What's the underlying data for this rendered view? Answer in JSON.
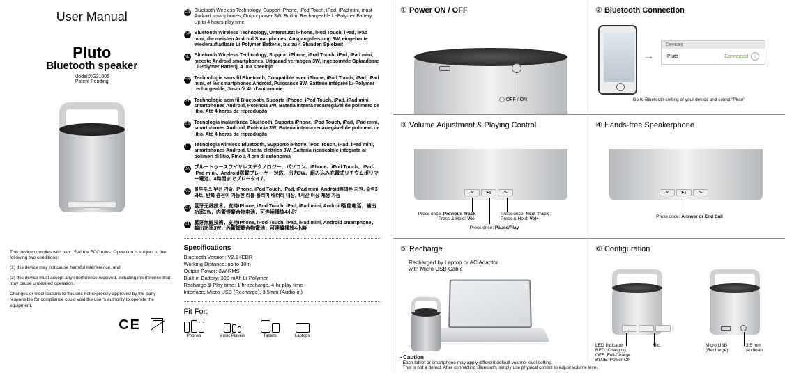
{
  "left": {
    "um": "User Manual",
    "title1": "Pluto",
    "title2": "Bluetooth speaker",
    "model": "Model:XG31005",
    "patent": "Patent Pending",
    "fcc1": "This device complies with part 15 of the FCC rules. Operation is subject to the following two conditions:",
    "fcc2": "(1) this device may not cause harmful interference, and",
    "fcc3": "(2) this device must accept any interference received, including interference that may cause undesired operation.",
    "fcc4": "Changes or modifications to this unit not expressly approved by the party responsible for compliance could void the user's authority to operate the equipment.",
    "ce": "CE"
  },
  "langs": [
    {
      "code": "EN",
      "bold": false,
      "txt": "Bluetooth Wireless Technology, Support iPhone, iPod Touch, iPad, iPad mini, most Android smartphones, Output power 3W, Built-in Rechargeable Li-Polymer Battery, Up to 4 hours play time"
    },
    {
      "code": "DE",
      "bold": true,
      "txt": "Bluetooth Wireless Technology, Unterstützt iPhone, iPod Touch, iPad, iPad mini, die meisten Android Smartphones, Ausgangsleistung 3W, eingebaute wiederaufladbare Li-Polymer Batterie, bis zu 4 Stunden Spielzeit"
    },
    {
      "code": "NL",
      "bold": true,
      "txt": "Bluetooth Wireless Technology, Support iPhone, iPod Touch, iPad, iPad mini, meeste Android smartphones, Uitgaand vermogen 3W, Ingebouwde Oplaadbare Li-Polymer Batterij, 4 uur speeltijd"
    },
    {
      "code": "FR",
      "bold": true,
      "txt": "Technologie sans fil Bluetooth, Compatible avec iPhone, iPod Touch, iPad, iPad mini, et les smartphones Android, Puissance 3W, Batterie intégrée Li-Polymer rechargeable, Jusqu'à 4h d'autonomie"
    },
    {
      "code": "PT",
      "bold": true,
      "txt": "Technologie sem fil Bluetooth, Suporta iPhone, iPod Touch, iPad, iPad mini, smartphones Android, Potência 3W, Bateria interna recarregável de polímero de lítio, Até 4 horas de reprodução"
    },
    {
      "code": "ES",
      "bold": true,
      "txt": "Tecnología inalámbrica Bluetooth, Suporta iPhone, iPod Touch, iPad, iPad mini, smartphones Android, Potência 3W, Bateria interna recarregável de polímero de lítio, Até 4 horas de reprodução"
    },
    {
      "code": "IT",
      "bold": true,
      "txt": "Tecnologia wireless Bluetooth, Supporto iPhone, iPod Touch, iPad, iPad mini, smartphones Android, Uscita elettrica 3W, Batteria ricaricabile integrata ai polimeri di litio, Fino a 4 ore di autonomia"
    },
    {
      "code": "JA",
      "bold": true,
      "txt": "ブルートゥースワイヤレステクノロジー、パソコン、iPhone、iPod Touch、iPad、iPad mini、Android搭載プレーヤー対応、出力3W、組み込み充電式リチウムポリマー電池、4時間までプレータイム"
    },
    {
      "code": "KO",
      "bold": true,
      "txt": "블루투스 무선 기술, iPhone, iPod Touch, iPad, iPad mini, Android휴대폰 지원, 출력3와트, 반복 충전이 가능한 리튬 폴리머 배터리 내장, 4시간 이상 재생 가능"
    },
    {
      "code": "ZH",
      "bold": true,
      "txt": "蓝牙无线技术，支持iPhone, iPod Touch, iPad, iPad mini, Android智能电话，输出功率3W，内置锂聚合物电池，可连续播放4小时"
    },
    {
      "code": "ZT",
      "bold": true,
      "txt": "藍牙無線技術，支持iPhone, iPod Touch, iPad, iPad mini, Android smartphone，輸出功率3W，內置鋰聚合物電池，可連續播放4小時"
    }
  ],
  "spec": {
    "h": "Specifications",
    "l1": "Bluetooth Version: V2.1+EDR",
    "l2": "Working Distance: up to 10m",
    "l3": "Output Power: 3W RMS",
    "l4": "Built-in Battery: 300 mAh Li-Polymer",
    "l5": "Recharge & Play time: 1 hr recharge, 4-hr play time",
    "l6": "Interface: Micro USB (Recharge), 3.5mm (Audio-in)"
  },
  "fitfor": {
    "h": "Fit For:",
    "c1": "Phones",
    "c2": "Music Players",
    "c3": "Tablets",
    "c4": "Laptops"
  },
  "cells": {
    "c1": {
      "n": "①",
      "t": "Power  ON / OFF",
      "sw": "OFF / ON"
    },
    "c2": {
      "n": "②",
      "t": "Bluetooth  Connection",
      "devh": "Devices",
      "devn": "Pluto",
      "devs": "Connected",
      "note": "Go to Bluetooth setting of your device and select \"Pluto\""
    },
    "c3": {
      "n": "③",
      "t": "Volume Adjustment & Playing Control",
      "b1": "≪",
      "b2": "▶||",
      "b3": "≫",
      "l1a": "Press once: ",
      "l1b": "Previous Track",
      "l1c": "Press & Hold: ",
      "l1d": "Vol-",
      "l2a": "Press once: ",
      "l2b": "Pause/Play",
      "l3a": "Press once: ",
      "l3b": "Next Track",
      "l3c": "Press & Hold: ",
      "l3d": "Vol+"
    },
    "c4": {
      "n": "④",
      "t": "Hands-free Speakerphone",
      "b1": "≪",
      "b2": "▶||",
      "b3": "≫",
      "l1a": "Press once: ",
      "l1b": "Answer or End Call"
    },
    "c5": {
      "n": "⑤",
      "t": "Recharge",
      "note": "Recharged by Laptop or AC Adaptor\nwith Micro USB Cable"
    },
    "c6": {
      "n": "⑥",
      "t": "Configuration",
      "led": "LED Indicator",
      "led2": "RED: Charging",
      "led3": "OFF: Full-Charge",
      "led4": "BLUE: Power ON",
      "mic": "Mic.",
      "usb": "Micro USB\n(Recharge)",
      "aux": "3.5 mm\nAudio-in"
    },
    "caution": {
      "h": "Caution",
      "l1": "Each tablet or smartphone may apply different default volume-level setting.",
      "l2": "This is not a defect. After connecting Bluetooth, simply use physical control to adjust volume level."
    }
  }
}
